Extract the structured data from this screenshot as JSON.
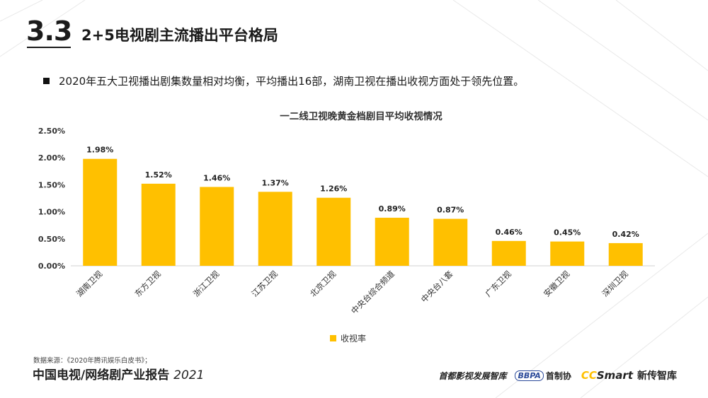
{
  "header": {
    "section_number": "3.3",
    "title": "2+5电视剧主流播出平台格局"
  },
  "bullet": {
    "text": "2020年五大卫视播出剧集数量相对均衡，平均播出16部，湖南卫视在播出收视方面处于领先位置。"
  },
  "chart_data": {
    "type": "bar",
    "title": "一二线卫视晚黄金档剧目平均收视情况",
    "categories": [
      "湖南卫视",
      "东方卫视",
      "浙江卫视",
      "江苏卫视",
      "北京卫视",
      "中央台综合频道",
      "中央台八套",
      "广东卫视",
      "安徽卫视",
      "深圳卫视"
    ],
    "series": [
      {
        "name": "收视率",
        "values": [
          1.98,
          1.52,
          1.46,
          1.37,
          1.26,
          0.89,
          0.87,
          0.46,
          0.45,
          0.42
        ],
        "color": "#FFC000"
      }
    ],
    "data_labels": [
      "1.98%",
      "1.52%",
      "1.46%",
      "1.37%",
      "1.26%",
      "0.89%",
      "0.87%",
      "0.46%",
      "0.45%",
      "0.42%"
    ],
    "y_ticks": [
      0,
      0.5,
      1.0,
      1.5,
      2.0,
      2.5
    ],
    "y_tick_labels": [
      "0.00%",
      "0.50%",
      "1.00%",
      "1.50%",
      "2.00%",
      "2.50%"
    ],
    "ylim": [
      0,
      2.5
    ],
    "grid": false,
    "legend_position": "bottom"
  },
  "legend": {
    "label": "收视率"
  },
  "source_note": "数据来源：《2020年腾讯娱乐白皮书》；",
  "footer": {
    "title_main": "中国电视/网络剧产业报告",
    "title_year": "2021",
    "logo1": "首都影视发展智库",
    "logo2_abbr": "BBPA",
    "logo2_text": "首制协",
    "logo3_cc": "CC",
    "logo3_smart": "Smart",
    "logo3_text": "新传智库"
  }
}
